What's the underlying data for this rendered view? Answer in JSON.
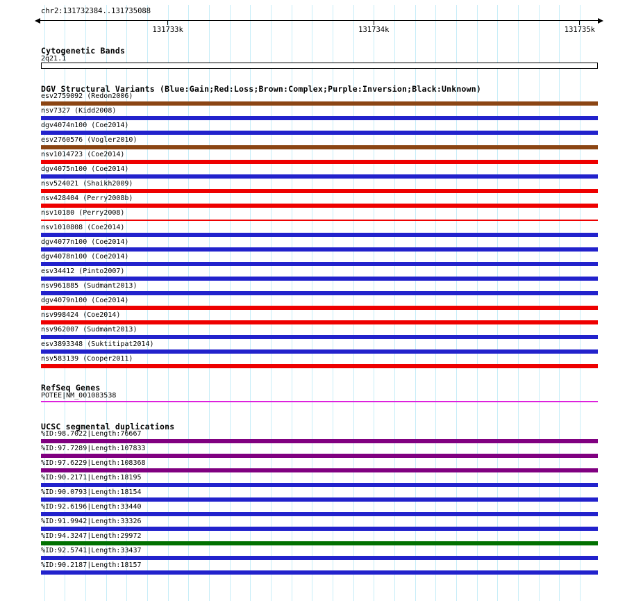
{
  "colors": {
    "grid": "#c7edf8",
    "blue": "#2222cc",
    "red": "#ee0000",
    "brown": "#8b4513",
    "purple": "#800080",
    "green": "#007000",
    "magenta": "#dd22dd",
    "black": "#000000"
  },
  "ruler": {
    "region": "chr2:131732384..131735088",
    "start": 131732384,
    "end": 131735088,
    "grid_step_bp": 100,
    "ticks": [
      {
        "label": "131733k",
        "bp": 131733000
      },
      {
        "label": "131734k",
        "bp": 131734000
      },
      {
        "label": "131735k",
        "bp": 131735000
      }
    ]
  },
  "cytobands": {
    "title": "Cytogenetic Bands",
    "band": "2q21.1"
  },
  "dgv": {
    "title": "DGV Structural Variants (Blue:Gain;Red:Loss;Brown:Complex;Purple:Inversion;Black:Unknown)",
    "tracks": [
      {
        "label": "esv2759092 (Redon2006)",
        "color": "brown"
      },
      {
        "label": "nsv7327 (Kidd2008)",
        "color": "blue"
      },
      {
        "label": "dgv4074n100 (Coe2014)",
        "color": "blue"
      },
      {
        "label": "esv2760576 (Vogler2010)",
        "color": "brown"
      },
      {
        "label": "nsv1014723 (Coe2014)",
        "color": "red"
      },
      {
        "label": "dgv4075n100 (Coe2014)",
        "color": "blue"
      },
      {
        "label": "nsv524021 (Shaikh2009)",
        "color": "red"
      },
      {
        "label": "nsv428404 (Perry2008b)",
        "color": "red"
      },
      {
        "label": "nsv10180 (Perry2008)",
        "color": "red",
        "thin": true
      },
      {
        "label": "nsv1010808 (Coe2014)",
        "color": "blue"
      },
      {
        "label": "dgv4077n100 (Coe2014)",
        "color": "blue"
      },
      {
        "label": "dgv4078n100 (Coe2014)",
        "color": "blue"
      },
      {
        "label": "esv34412 (Pinto2007)",
        "color": "blue"
      },
      {
        "label": "nsv961885 (Sudmant2013)",
        "color": "blue"
      },
      {
        "label": "dgv4079n100 (Coe2014)",
        "color": "red"
      },
      {
        "label": "nsv998424 (Coe2014)",
        "color": "red"
      },
      {
        "label": "nsv962007 (Sudmant2013)",
        "color": "blue"
      },
      {
        "label": "esv3893348 (Suktitipat2014)",
        "color": "blue"
      },
      {
        "label": "nsv583139 (Cooper2011)",
        "color": "red"
      }
    ]
  },
  "refseq": {
    "title": "RefSeq Genes",
    "gene": "POTEE|NM_001083538"
  },
  "segdup": {
    "title": "UCSC segmental duplications",
    "tracks": [
      {
        "label": "%ID:98.7022|Length:76667",
        "color": "purple"
      },
      {
        "label": "%ID:97.7289|Length:107833",
        "color": "purple"
      },
      {
        "label": "%ID:97.6229|Length:108368",
        "color": "purple"
      },
      {
        "label": "%ID:90.2171|Length:18195",
        "color": "blue"
      },
      {
        "label": "%ID:90.0793|Length:18154",
        "color": "blue"
      },
      {
        "label": "%ID:92.6196|Length:33440",
        "color": "blue"
      },
      {
        "label": "%ID:91.9942|Length:33326",
        "color": "blue"
      },
      {
        "label": "%ID:94.3247|Length:29972",
        "color": "green"
      },
      {
        "label": "%ID:92.5741|Length:33437",
        "color": "blue"
      },
      {
        "label": "%ID:90.2187|Length:18157",
        "color": "blue"
      }
    ]
  }
}
